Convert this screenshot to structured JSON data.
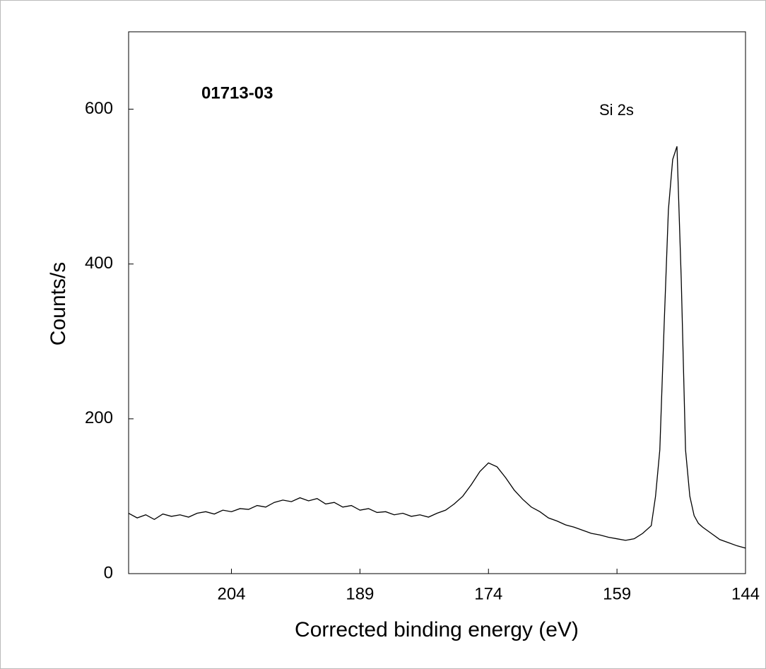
{
  "chart_data": {
    "type": "line",
    "annotations": [
      "01713-03",
      "Si 2s"
    ],
    "x_label": "Corrected binding energy (eV)",
    "y_label": "Counts/s",
    "color": "#000000",
    "x": [
      216,
      215,
      214,
      213,
      212,
      211,
      210,
      209,
      208,
      207,
      206,
      205,
      204,
      203,
      202,
      201,
      200,
      199,
      198,
      197,
      196,
      195,
      194,
      193,
      192,
      191,
      190,
      189,
      188,
      187,
      186,
      185,
      184,
      183,
      182,
      181,
      180,
      179,
      178,
      177,
      176,
      175,
      174,
      173,
      172,
      171,
      170,
      169,
      168,
      167,
      166,
      165,
      164,
      163,
      162,
      161,
      160,
      159,
      158,
      157,
      156,
      155,
      154.5,
      154,
      153.5,
      153,
      152.5,
      152,
      151.5,
      151,
      150.5,
      150,
      149.5,
      149,
      148,
      147,
      146,
      145,
      144
    ],
    "values": [
      78,
      72,
      76,
      70,
      77,
      74,
      76,
      73,
      78,
      80,
      77,
      82,
      80,
      84,
      83,
      88,
      86,
      92,
      95,
      93,
      98,
      94,
      97,
      90,
      92,
      86,
      88,
      82,
      84,
      79,
      80,
      76,
      78,
      74,
      76,
      73,
      78,
      82,
      90,
      100,
      115,
      132,
      143,
      138,
      124,
      108,
      96,
      86,
      80,
      72,
      68,
      63,
      60,
      56,
      52,
      50,
      47,
      45,
      43,
      45,
      52,
      62,
      100,
      160,
      320,
      470,
      535,
      552,
      380,
      160,
      100,
      75,
      65,
      60,
      52,
      44,
      40,
      36,
      33
    ],
    "xlim": [
      216,
      144
    ],
    "xticks": [
      204,
      189,
      174,
      159,
      144
    ],
    "ylim": [
      0,
      700
    ],
    "yticks": [
      0,
      200,
      400,
      600
    ]
  }
}
